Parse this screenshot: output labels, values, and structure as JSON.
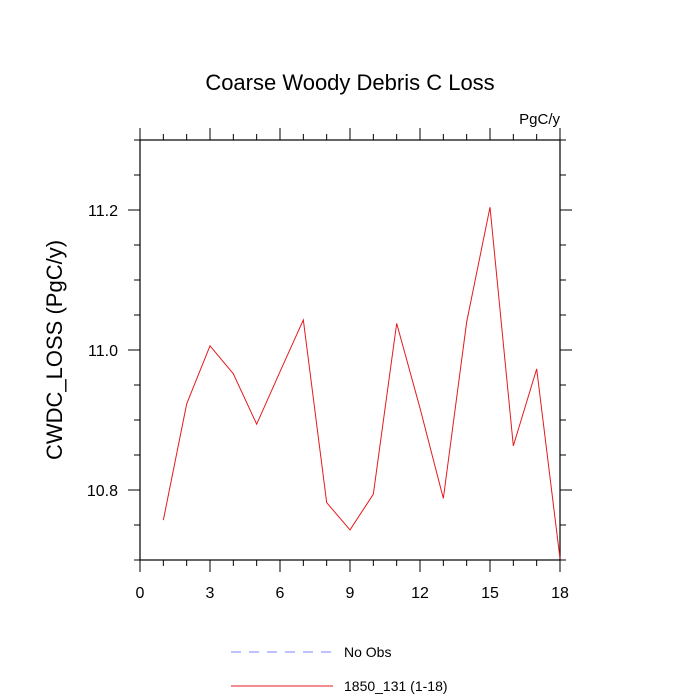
{
  "chart_data": {
    "type": "line",
    "title": "Coarse Woody Debris C Loss",
    "units_label": "PgC/y",
    "xlabel": "",
    "ylabel": "CWDC_LOSS  (PgC/y)",
    "xlim": [
      0,
      18
    ],
    "ylim": [
      10.7,
      11.3
    ],
    "x_ticks": [
      0,
      3,
      6,
      9,
      12,
      15,
      18
    ],
    "y_ticks": [
      10.8,
      11.0,
      11.2
    ],
    "y_tick_labels": [
      "10.8",
      "11.0",
      "11.2"
    ],
    "x": [
      1,
      2,
      3,
      4,
      5,
      6,
      7,
      8,
      9,
      10,
      11,
      12,
      13,
      14,
      15,
      16,
      17,
      18
    ],
    "series": [
      {
        "name": "1850_131 (1-18)",
        "color": "#e41a1c",
        "line_style": "solid",
        "values": [
          10.757,
          10.923,
          11.006,
          10.966,
          10.894,
          10.969,
          11.043,
          10.782,
          10.743,
          10.794,
          11.038,
          10.917,
          10.788,
          11.04,
          11.204,
          10.863,
          10.973,
          10.702
        ]
      }
    ],
    "legend": [
      {
        "label": "No Obs",
        "color": "#8080ff",
        "line_style": "dashed"
      },
      {
        "label": "1850_131 (1-18)",
        "color": "#e41a1c",
        "line_style": "solid"
      }
    ],
    "legend_placement": "bottom-center",
    "grid": false
  }
}
